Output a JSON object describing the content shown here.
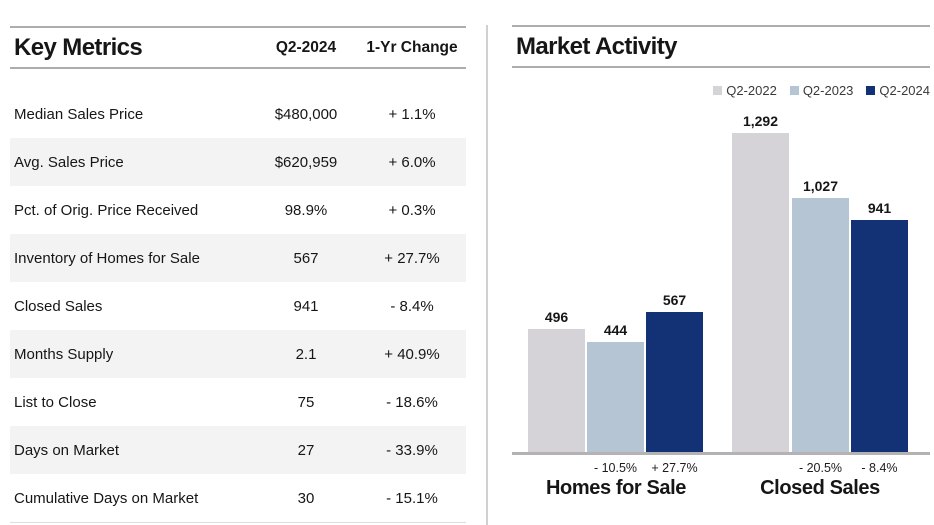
{
  "left_panel": {
    "title": "Key Metrics",
    "col_period": "Q2-2024",
    "col_change": "1-Yr Change",
    "rows": [
      {
        "label": "Median Sales Price",
        "value": "$480,000",
        "change": "+ 1.1%"
      },
      {
        "label": "Avg. Sales Price",
        "value": "$620,959",
        "change": "+ 6.0%"
      },
      {
        "label": "Pct. of Orig. Price Received",
        "value": "98.9%",
        "change": "+ 0.3%"
      },
      {
        "label": "Inventory of Homes for Sale",
        "value": "567",
        "change": "+ 27.7%"
      },
      {
        "label": "Closed Sales",
        "value": "941",
        "change": "- 8.4%"
      },
      {
        "label": "Months Supply",
        "value": "2.1",
        "change": "+ 40.9%"
      },
      {
        "label": "List to Close",
        "value": "75",
        "change": "- 18.6%"
      },
      {
        "label": "Days on Market",
        "value": "27",
        "change": "- 33.9%"
      },
      {
        "label": "Cumulative Days on Market",
        "value": "30",
        "change": "- 15.1%"
      }
    ]
  },
  "chart_data": {
    "type": "bar",
    "title": "Market Activity",
    "categories": [
      "Homes for Sale",
      "Closed Sales"
    ],
    "series": [
      {
        "name": "Q2-2022",
        "color": "#d6d3d8",
        "values": [
          496,
          1292
        ],
        "value_labels": [
          "496",
          "1,292"
        ],
        "change_labels": [
          "",
          ""
        ]
      },
      {
        "name": "Q2-2023",
        "color": "#b5c5d3",
        "values": [
          444,
          1027
        ],
        "value_labels": [
          "444",
          "1,027"
        ],
        "change_labels": [
          "- 10.5%",
          "- 20.5%"
        ]
      },
      {
        "name": "Q2-2024",
        "color": "#123275",
        "values": [
          567,
          941
        ],
        "value_labels": [
          "567",
          "941"
        ],
        "change_labels": [
          "+ 27.7%",
          "- 8.4%"
        ]
      }
    ],
    "xlabel": "",
    "ylabel": "",
    "ylim": [
      0,
      1300
    ],
    "grid": false,
    "legend_position": "top-right"
  }
}
